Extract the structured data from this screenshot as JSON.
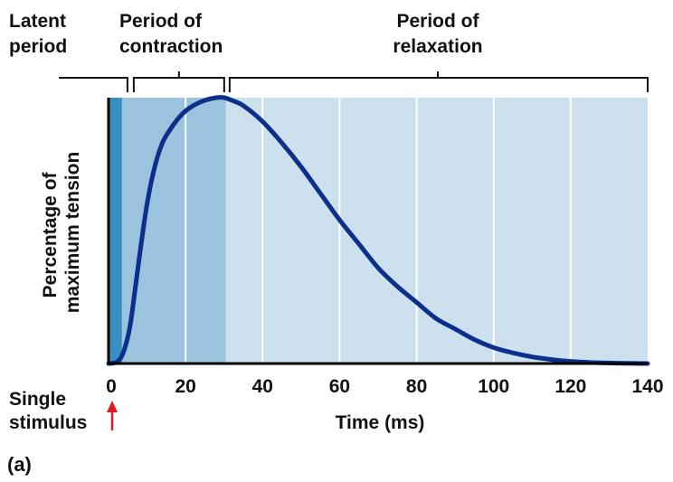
{
  "chart_data": {
    "type": "line",
    "title": "",
    "xlabel": "Time (ms)",
    "ylabel_lines": [
      "Percentage of",
      "maximum tension"
    ],
    "xlim": [
      0,
      140
    ],
    "ylim": [
      0,
      100
    ],
    "x_ticks": [
      0,
      20,
      40,
      60,
      80,
      100,
      120,
      140
    ],
    "gridlines_x": [
      20,
      40,
      60,
      80,
      100,
      120
    ],
    "phases": [
      {
        "name": "Latent period",
        "lines": [
          "Latent",
          "period"
        ],
        "start": 0,
        "end": 3.5,
        "color": "#3a8fc2"
      },
      {
        "name": "Period of contraction",
        "lines": [
          "Period of",
          "contraction"
        ],
        "start": 3.5,
        "end": 30.5,
        "color": "#9cc3de"
      },
      {
        "name": "Period of relaxation",
        "lines": [
          "Period of",
          "relaxation"
        ],
        "start": 30.5,
        "end": 140,
        "color": "#cce0ee"
      }
    ],
    "series": [
      {
        "color": "#0d2f8c",
        "points": [
          [
            0,
            0
          ],
          [
            2,
            0.5
          ],
          [
            3.5,
            3
          ],
          [
            5,
            10
          ],
          [
            6,
            18
          ],
          [
            8,
            40
          ],
          [
            10,
            60
          ],
          [
            12,
            74
          ],
          [
            14,
            83
          ],
          [
            16,
            88
          ],
          [
            18,
            92
          ],
          [
            20,
            95
          ],
          [
            22,
            97
          ],
          [
            25,
            99
          ],
          [
            28,
            100
          ],
          [
            30,
            100
          ],
          [
            32,
            99
          ],
          [
            35,
            97
          ],
          [
            40,
            91
          ],
          [
            45,
            83
          ],
          [
            50,
            74
          ],
          [
            55,
            64
          ],
          [
            60,
            54
          ],
          [
            65,
            45
          ],
          [
            70,
            36
          ],
          [
            75,
            29
          ],
          [
            80,
            23
          ],
          [
            85,
            17
          ],
          [
            90,
            13
          ],
          [
            95,
            9
          ],
          [
            100,
            6
          ],
          [
            105,
            4
          ],
          [
            110,
            2.5
          ],
          [
            115,
            1.5
          ],
          [
            120,
            0.8
          ],
          [
            125,
            0.4
          ],
          [
            130,
            0.2
          ],
          [
            135,
            0.1
          ],
          [
            140,
            0
          ]
        ]
      }
    ]
  },
  "stimulus": {
    "lines": [
      "Single",
      "stimulus"
    ],
    "arrow_color": "#e01b1b"
  },
  "panel_label": "(a)"
}
